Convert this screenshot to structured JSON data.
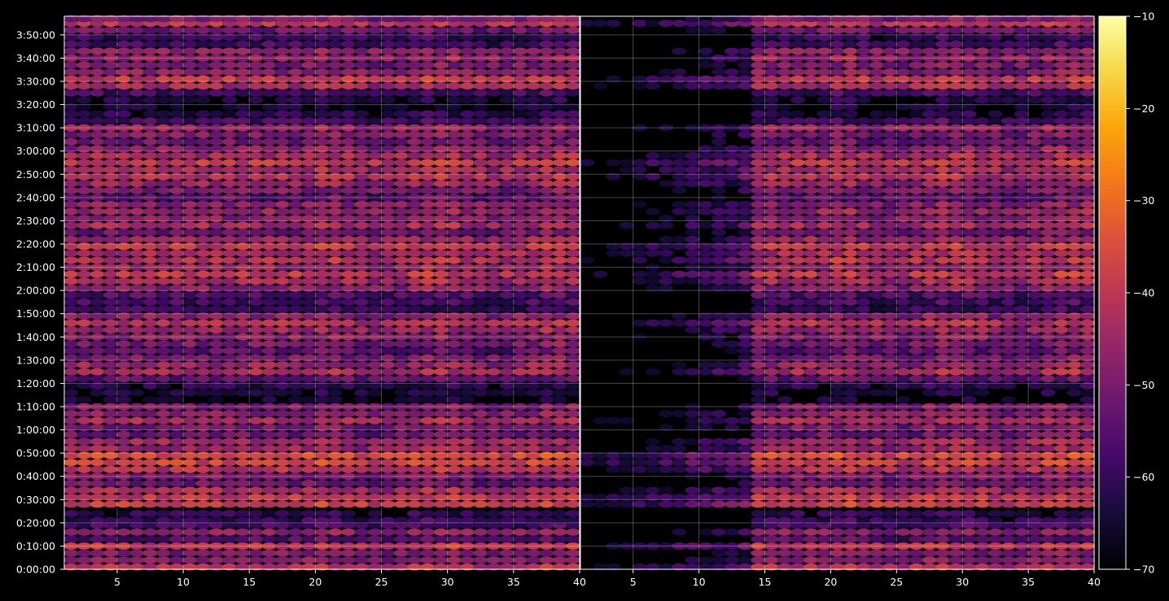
{
  "chart_data": {
    "type": "heatmap",
    "panels": [
      {
        "name": "",
        "x_ticks": [
          "5",
          "10",
          "15",
          "20",
          "25",
          "30",
          "35",
          "40"
        ],
        "xlim": [
          1,
          40
        ]
      },
      {
        "name": "",
        "x_ticks": [
          "5",
          "10",
          "15",
          "20",
          "25",
          "30",
          "35",
          "40"
        ],
        "xlim": [
          1,
          40
        ]
      }
    ],
    "y_ticks": [
      "0:00:00",
      "0:10:00",
      "0:20:00",
      "0:30:00",
      "0:40:00",
      "0:50:00",
      "1:00:00",
      "1:10:00",
      "1:20:00",
      "1:30:00",
      "1:40:00",
      "1:50:00",
      "2:00:00",
      "2:10:00",
      "2:20:00",
      "2:30:00",
      "2:40:00",
      "2:50:00",
      "3:00:00",
      "3:10:00",
      "3:20:00",
      "3:30:00",
      "3:40:00",
      "3:50:00"
    ],
    "ylim_minutes": [
      0,
      238
    ],
    "grid": true,
    "colorbar": {
      "colormap": "inferno",
      "range": [
        -70,
        -10
      ],
      "ticks": [
        "−10",
        "−20",
        "−30",
        "−40",
        "−50",
        "−60",
        "−70"
      ],
      "tick_values": [
        -10,
        -20,
        -30,
        -40,
        -50,
        -60,
        -70
      ]
    },
    "row_intensity_note_rows": [
      {
        "t": 1,
        "v": -42
      },
      {
        "t": 4,
        "v": -48
      },
      {
        "t": 7,
        "v": -50
      },
      {
        "t": 10,
        "v": -40
      },
      {
        "t": 13,
        "v": -56
      },
      {
        "t": 16,
        "v": -48
      },
      {
        "t": 19,
        "v": -58
      },
      {
        "t": 21,
        "v": -60
      },
      {
        "t": 24,
        "v": -62
      },
      {
        "t": 28,
        "v": -38
      },
      {
        "t": 31,
        "v": -40
      },
      {
        "t": 34,
        "v": -44
      },
      {
        "t": 37,
        "v": -52
      },
      {
        "t": 40,
        "v": -50
      },
      {
        "t": 43,
        "v": -42
      },
      {
        "t": 46,
        "v": -38
      },
      {
        "t": 49,
        "v": -36
      },
      {
        "t": 52,
        "v": -46
      },
      {
        "t": 55,
        "v": -44
      },
      {
        "t": 58,
        "v": -52
      },
      {
        "t": 61,
        "v": -50
      },
      {
        "t": 64,
        "v": -44
      },
      {
        "t": 67,
        "v": -48
      },
      {
        "t": 70,
        "v": -50
      },
      {
        "t": 73,
        "v": -66
      },
      {
        "t": 76,
        "v": -64
      },
      {
        "t": 79,
        "v": -62
      },
      {
        "t": 82,
        "v": -54
      },
      {
        "t": 85,
        "v": -44
      },
      {
        "t": 88,
        "v": -46
      },
      {
        "t": 91,
        "v": -50
      },
      {
        "t": 94,
        "v": -54
      },
      {
        "t": 97,
        "v": -50
      },
      {
        "t": 100,
        "v": -48
      },
      {
        "t": 103,
        "v": -46
      },
      {
        "t": 106,
        "v": -42
      },
      {
        "t": 109,
        "v": -48
      },
      {
        "t": 112,
        "v": -60
      },
      {
        "t": 115,
        "v": -58
      },
      {
        "t": 118,
        "v": -56
      },
      {
        "t": 121,
        "v": -48
      },
      {
        "t": 124,
        "v": -44
      },
      {
        "t": 127,
        "v": -40
      },
      {
        "t": 130,
        "v": -46
      },
      {
        "t": 133,
        "v": -42
      },
      {
        "t": 136,
        "v": -44
      },
      {
        "t": 139,
        "v": -40
      },
      {
        "t": 142,
        "v": -46
      },
      {
        "t": 145,
        "v": -52
      },
      {
        "t": 148,
        "v": -44
      },
      {
        "t": 151,
        "v": -48
      },
      {
        "t": 154,
        "v": -46
      },
      {
        "t": 157,
        "v": -48
      },
      {
        "t": 160,
        "v": -54
      },
      {
        "t": 163,
        "v": -50
      },
      {
        "t": 166,
        "v": -46
      },
      {
        "t": 169,
        "v": -42
      },
      {
        "t": 172,
        "v": -44
      },
      {
        "t": 175,
        "v": -40
      },
      {
        "t": 178,
        "v": -44
      },
      {
        "t": 181,
        "v": -48
      },
      {
        "t": 184,
        "v": -52
      },
      {
        "t": 187,
        "v": -50
      },
      {
        "t": 190,
        "v": -46
      },
      {
        "t": 193,
        "v": -58
      },
      {
        "t": 196,
        "v": -62
      },
      {
        "t": 199,
        "v": -66
      },
      {
        "t": 202,
        "v": -64
      },
      {
        "t": 205,
        "v": -58
      },
      {
        "t": 208,
        "v": -44
      },
      {
        "t": 211,
        "v": -40
      },
      {
        "t": 214,
        "v": -48
      },
      {
        "t": 217,
        "v": -50
      },
      {
        "t": 220,
        "v": -46
      },
      {
        "t": 223,
        "v": -48
      },
      {
        "t": 226,
        "v": -58
      },
      {
        "t": 229,
        "v": -60
      },
      {
        "t": 232,
        "v": -52
      },
      {
        "t": 235,
        "v": -40
      },
      {
        "t": 237,
        "v": -50
      }
    ]
  }
}
